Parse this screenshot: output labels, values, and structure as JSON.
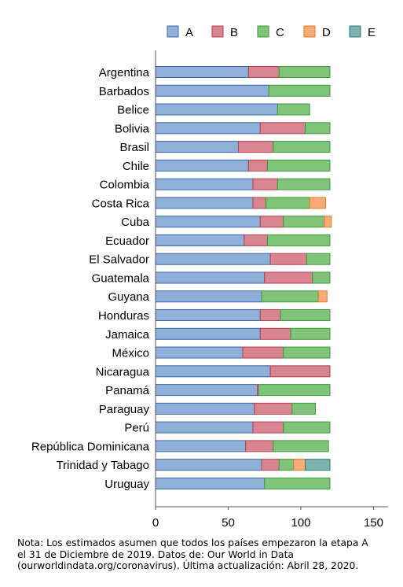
{
  "chart_data": {
    "type": "bar",
    "orientation": "horizontal",
    "stacked": true,
    "title": "",
    "xlabel": "",
    "ylabel": "",
    "xlim": [
      0,
      160
    ],
    "xticks": [
      0,
      50,
      100,
      150
    ],
    "grid": false,
    "legend_position": "top",
    "categories": [
      "Argentina",
      "Barbados",
      "Belice",
      "Bolivia",
      "Brasil",
      "Chile",
      "Colombia",
      "Costa Rica",
      "Cuba",
      "Ecuador",
      "El Salvador",
      "Guatemala",
      "Guyana",
      "Honduras",
      "Jamaica",
      "México",
      "Nicaragua",
      "Panamá",
      "Paraguay",
      "Perú",
      "República Dominicana",
      "Trinidad y Tabago",
      "Uruguay"
    ],
    "series": [
      {
        "name": "A",
        "color": "#8fb1d9",
        "stroke": "#3a68a8",
        "values": [
          64,
          78,
          84,
          72,
          57,
          64,
          67,
          67,
          72,
          61,
          79,
          75,
          73,
          72,
          72,
          60,
          79,
          70,
          68,
          67,
          62,
          73,
          75
        ]
      },
      {
        "name": "B",
        "color": "#d98591",
        "stroke": "#b3404f",
        "values": [
          21,
          0,
          0,
          31,
          24,
          13,
          17,
          9,
          16,
          16,
          25,
          33,
          0,
          14,
          21,
          28,
          41,
          1,
          26,
          21,
          19,
          12,
          0
        ]
      },
      {
        "name": "C",
        "color": "#80c47a",
        "stroke": "#3f9a3a",
        "values": [
          35,
          42,
          22,
          17,
          39,
          43,
          36,
          30,
          28,
          43,
          16,
          12,
          39,
          34,
          27,
          32,
          0,
          49,
          16,
          32,
          38,
          10,
          45
        ]
      },
      {
        "name": "D",
        "color": "#f5ac77",
        "stroke": "#e07b30",
        "values": [
          0,
          0,
          0,
          0,
          0,
          0,
          0,
          11,
          5,
          0,
          0,
          0,
          6,
          0,
          0,
          0,
          0,
          0,
          0,
          0,
          0,
          8,
          0
        ]
      },
      {
        "name": "E",
        "color": "#7fb3ad",
        "stroke": "#2f7a73",
        "values": [
          0,
          0,
          0,
          0,
          0,
          0,
          0,
          0,
          0,
          0,
          0,
          0,
          0,
          0,
          0,
          0,
          0,
          0,
          0,
          0,
          0,
          17,
          0
        ]
      }
    ]
  },
  "note": {
    "line1": "Nota: Los estimados asumen que todos los países empezaron la etapa A",
    "line2": "el 31 de Diciembre de 2019. Datos de: Our World in Data",
    "line3": "(ourworldindata.org/coronavirus). Última actualización: Abril 28, 2020."
  }
}
